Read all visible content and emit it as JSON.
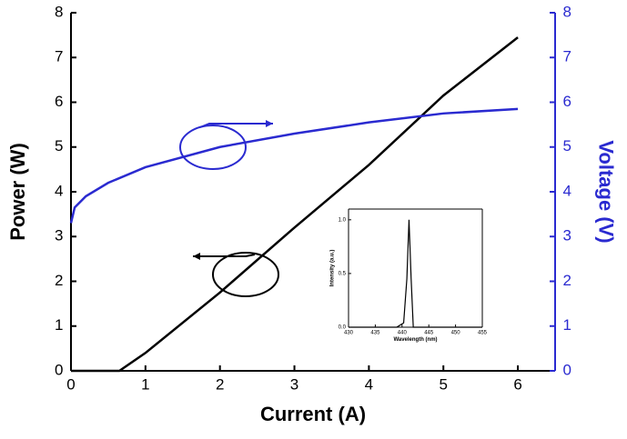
{
  "chart_data": [
    {
      "type": "line",
      "xlabel": "Current (A)",
      "ylabel": "Power (W)",
      "y2label": "Voltage (V)",
      "xlim": [
        0,
        6.5
      ],
      "xticks": [
        0,
        1,
        2,
        3,
        4,
        5,
        6
      ],
      "ylim": [
        0,
        8
      ],
      "yticks": [
        0,
        1,
        2,
        3,
        4,
        5,
        6,
        7,
        8
      ],
      "y2lim": [
        0,
        8
      ],
      "y2ticks": [
        0,
        1,
        2,
        3,
        4,
        5,
        6,
        7,
        8
      ],
      "y2color": "#2a2ad0",
      "series": [
        {
          "color": "#000000",
          "x": [
            0,
            0.65,
            1,
            2,
            3,
            4,
            5,
            6
          ],
          "values": [
            0,
            0,
            0.4,
            1.75,
            3.2,
            4.6,
            6.15,
            7.45
          ]
        },
        {
          "color": "#2a2ad0",
          "axis": "y2",
          "x": [
            0,
            0.05,
            0.2,
            0.5,
            1,
            2,
            3,
            4,
            5,
            6
          ],
          "values": [
            3.3,
            3.65,
            3.9,
            4.2,
            4.55,
            5.0,
            5.3,
            5.55,
            5.75,
            5.85
          ]
        }
      ]
    },
    {
      "type": "line",
      "xlabel": "Wavelength (nm)",
      "ylabel": "Intensity (a.u.)",
      "xlim": [
        430,
        455
      ],
      "xticks": [
        430,
        435,
        440,
        445,
        450,
        455
      ],
      "ylim": [
        0,
        1.1
      ],
      "yticks": [
        {
          "value": 0,
          "label": "0.0"
        },
        0.5,
        {
          "value": 1,
          "label": "1.0"
        }
      ],
      "series": [
        {
          "color": "#000000",
          "x": [
            430,
            439,
            440.3,
            440.9,
            441.3,
            441.7,
            442.1,
            455
          ],
          "values": [
            0,
            0,
            0.04,
            0.45,
            1.0,
            0.45,
            0,
            0
          ]
        }
      ]
    }
  ]
}
